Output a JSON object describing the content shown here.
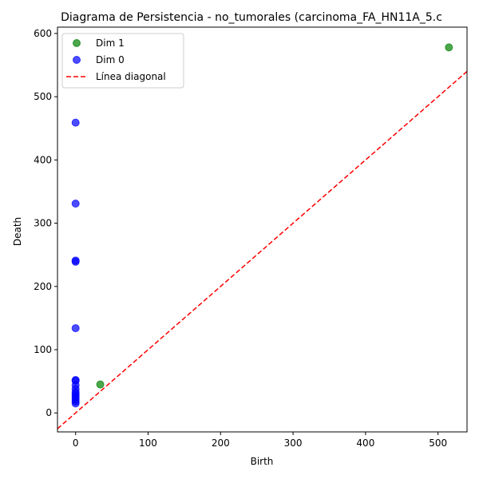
{
  "chart_data": {
    "type": "scatter",
    "title": "Diagrama de Persistencia - no_tumorales (carcinoma_FA_HN11A_5.c",
    "xlabel": "Birth",
    "ylabel": "Death",
    "xlim": [
      -25,
      540
    ],
    "ylim": [
      -30,
      610
    ],
    "xticks": [
      0,
      100,
      200,
      300,
      400,
      500
    ],
    "yticks": [
      0,
      100,
      200,
      300,
      400,
      500,
      600
    ],
    "legend_position": "top-left",
    "grid": false,
    "series": [
      {
        "name": "Dim 1",
        "color": "#008000",
        "marker": "circle",
        "points": [
          {
            "x": 34,
            "y": 45
          },
          {
            "x": 515,
            "y": 578
          }
        ]
      },
      {
        "name": "Dim 0",
        "color": "#0000ff",
        "marker": "circle",
        "points": [
          {
            "x": 0,
            "y": 459
          },
          {
            "x": 0,
            "y": 331
          },
          {
            "x": 0,
            "y": 241
          },
          {
            "x": 0,
            "y": 239
          },
          {
            "x": 0,
            "y": 134
          },
          {
            "x": 0,
            "y": 52
          },
          {
            "x": 0,
            "y": 51
          },
          {
            "x": 0,
            "y": 44
          },
          {
            "x": 0,
            "y": 38
          },
          {
            "x": 0,
            "y": 33
          },
          {
            "x": 0,
            "y": 30
          },
          {
            "x": 0,
            "y": 27
          },
          {
            "x": 0,
            "y": 24
          },
          {
            "x": 0,
            "y": 21
          },
          {
            "x": 0,
            "y": 18
          },
          {
            "x": 0,
            "y": 15
          }
        ]
      }
    ],
    "diagonal": {
      "name": "Línea diagonal",
      "color": "#ff0000",
      "style": "dashed"
    }
  }
}
